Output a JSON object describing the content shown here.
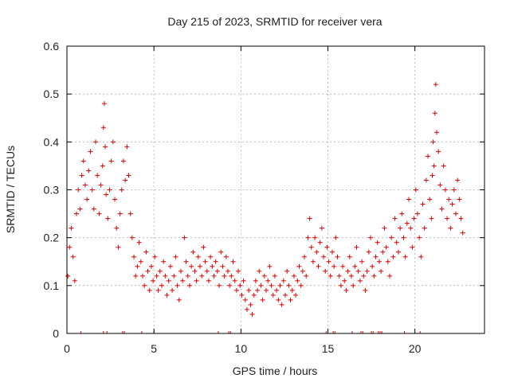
{
  "chart_data": {
    "type": "scatter",
    "title": "Day 215 of 2023, SRMTID for receiver vera",
    "xlabel": "GPS time / hours",
    "ylabel": "SRMTID / TECUs",
    "xlim": [
      0,
      24
    ],
    "ylim": [
      0,
      0.6
    ],
    "xticks": [
      0,
      5,
      10,
      15,
      20
    ],
    "yticks": [
      0,
      0.1,
      0.2,
      0.3,
      0.4,
      0.5,
      0.6
    ],
    "ytick_labels": [
      "0",
      "0.1",
      "0.2",
      "0.3",
      "0.4",
      "0.5",
      "0.6"
    ],
    "grid": true,
    "marker": "+",
    "color": "#e00000",
    "series": [
      {
        "name": "SRMTID",
        "x": [
          0.05,
          0.15,
          0.25,
          0.35,
          0.45,
          0.55,
          0.65,
          0.75,
          0.85,
          0.95,
          1.05,
          1.15,
          1.25,
          1.35,
          1.45,
          1.55,
          1.65,
          1.75,
          1.85,
          1.95,
          2.05,
          2.1,
          2.15,
          2.2,
          2.25,
          2.35,
          2.45,
          2.55,
          2.65,
          2.75,
          2.85,
          2.95,
          3.05,
          3.15,
          3.25,
          3.35,
          3.45,
          3.55,
          3.65,
          3.75,
          3.85,
          3.95,
          4.05,
          4.15,
          4.25,
          4.35,
          4.45,
          4.55,
          4.65,
          4.75,
          4.85,
          4.95,
          5.05,
          5.15,
          5.25,
          5.35,
          5.45,
          5.55,
          5.65,
          5.75,
          5.85,
          5.95,
          6.05,
          6.15,
          6.25,
          6.35,
          6.45,
          6.55,
          6.65,
          6.75,
          6.85,
          6.95,
          7.05,
          7.15,
          7.25,
          7.35,
          7.45,
          7.55,
          7.65,
          7.75,
          7.85,
          7.95,
          8.05,
          8.15,
          8.25,
          8.35,
          8.45,
          8.55,
          8.65,
          8.75,
          8.85,
          8.95,
          9.05,
          9.15,
          9.25,
          9.35,
          9.45,
          9.55,
          9.65,
          9.75,
          9.85,
          9.95,
          10.05,
          10.15,
          10.25,
          10.35,
          10.45,
          10.55,
          10.65,
          10.75,
          10.85,
          10.95,
          11.05,
          11.15,
          11.25,
          11.35,
          11.45,
          11.55,
          11.65,
          11.75,
          11.85,
          11.95,
          12.05,
          12.15,
          12.25,
          12.35,
          12.45,
          12.55,
          12.65,
          12.75,
          12.85,
          12.95,
          13.05,
          13.15,
          13.25,
          13.35,
          13.45,
          13.55,
          13.65,
          13.75,
          13.85,
          13.95,
          14.05,
          14.15,
          14.25,
          14.35,
          14.45,
          14.55,
          14.65,
          14.75,
          14.85,
          14.95,
          15.05,
          15.15,
          15.25,
          15.35,
          15.45,
          15.55,
          15.65,
          15.75,
          15.85,
          15.95,
          16.05,
          16.15,
          16.25,
          16.35,
          16.45,
          16.55,
          16.65,
          16.75,
          16.85,
          16.95,
          17.05,
          17.15,
          17.25,
          17.35,
          17.45,
          17.55,
          17.65,
          17.75,
          17.85,
          17.95,
          18.05,
          18.15,
          18.25,
          18.35,
          18.45,
          18.55,
          18.65,
          18.75,
          18.85,
          18.95,
          19.05,
          19.15,
          19.25,
          19.35,
          19.45,
          19.55,
          19.65,
          19.75,
          19.85,
          19.95,
          20.05,
          20.15,
          20.25,
          20.35,
          20.45,
          20.55,
          20.65,
          20.75,
          20.85,
          20.95,
          21.0,
          21.05,
          21.1,
          21.15,
          21.2,
          21.25,
          21.35,
          21.45,
          21.55,
          21.65,
          21.75,
          21.85,
          21.95,
          22.05,
          22.15,
          22.25,
          22.35,
          22.45,
          22.55,
          22.65,
          22.75
        ],
        "y": [
          0.12,
          0.18,
          0.22,
          0.16,
          0.11,
          0.25,
          0.3,
          0.26,
          0.33,
          0.36,
          0.31,
          0.28,
          0.34,
          0.38,
          0.3,
          0.26,
          0.4,
          0.33,
          0.25,
          0.31,
          0.35,
          0.43,
          0.48,
          0.39,
          0.29,
          0.24,
          0.3,
          0.36,
          0.4,
          0.28,
          0.22,
          0.18,
          0.25,
          0.3,
          0.36,
          0.32,
          0.39,
          0.33,
          0.25,
          0.2,
          0.16,
          0.12,
          0.14,
          0.19,
          0.15,
          0.12,
          0.1,
          0.17,
          0.13,
          0.09,
          0.14,
          0.11,
          0.16,
          0.12,
          0.09,
          0.13,
          0.1,
          0.15,
          0.12,
          0.08,
          0.11,
          0.14,
          0.09,
          0.12,
          0.16,
          0.1,
          0.07,
          0.13,
          0.11,
          0.2,
          0.15,
          0.12,
          0.1,
          0.14,
          0.17,
          0.13,
          0.11,
          0.16,
          0.14,
          0.12,
          0.18,
          0.15,
          0.13,
          0.11,
          0.16,
          0.14,
          0.12,
          0.15,
          0.13,
          0.1,
          0.17,
          0.14,
          0.12,
          0.16,
          0.13,
          0.1,
          0.12,
          0.15,
          0.11,
          0.09,
          0.13,
          0.1,
          0.08,
          0.11,
          0.07,
          0.05,
          0.09,
          0.06,
          0.04,
          0.08,
          0.11,
          0.09,
          0.13,
          0.1,
          0.07,
          0.12,
          0.09,
          0.11,
          0.14,
          0.1,
          0.08,
          0.12,
          0.09,
          0.07,
          0.1,
          0.06,
          0.11,
          0.08,
          0.13,
          0.1,
          0.07,
          0.09,
          0.12,
          0.08,
          0.11,
          0.14,
          0.1,
          0.13,
          0.16,
          0.12,
          0.2,
          0.24,
          0.18,
          0.15,
          0.2,
          0.17,
          0.14,
          0.19,
          0.22,
          0.16,
          0.13,
          0.18,
          0.15,
          0.12,
          0.17,
          0.14,
          0.2,
          0.16,
          0.12,
          0.1,
          0.14,
          0.11,
          0.09,
          0.13,
          0.16,
          0.12,
          0.1,
          0.14,
          0.18,
          0.13,
          0.11,
          0.15,
          0.12,
          0.09,
          0.13,
          0.17,
          0.2,
          0.14,
          0.12,
          0.16,
          0.19,
          0.15,
          0.13,
          0.17,
          0.22,
          0.18,
          0.15,
          0.12,
          0.2,
          0.16,
          0.24,
          0.19,
          0.17,
          0.22,
          0.25,
          0.2,
          0.16,
          0.23,
          0.28,
          0.22,
          0.18,
          0.24,
          0.3,
          0.25,
          0.2,
          0.16,
          0.27,
          0.22,
          0.32,
          0.37,
          0.28,
          0.24,
          0.33,
          0.4,
          0.35,
          0.46,
          0.52,
          0.42,
          0.38,
          0.31,
          0.26,
          0.35,
          0.3,
          0.24,
          0.28,
          0.22,
          0.27,
          0.3,
          0.25,
          0.32,
          0.28,
          0.24,
          0.21
        ]
      }
    ],
    "zero_marker_x": [
      0.8,
      2.1,
      2.3,
      3.2,
      3.3,
      4.3,
      5.0,
      8.7,
      9.3,
      9.4,
      14.9,
      15.3,
      15.4,
      16.4,
      16.9,
      17.0,
      17.5,
      17.6,
      17.9,
      18.0,
      18.1,
      19.4,
      20.3
    ]
  }
}
